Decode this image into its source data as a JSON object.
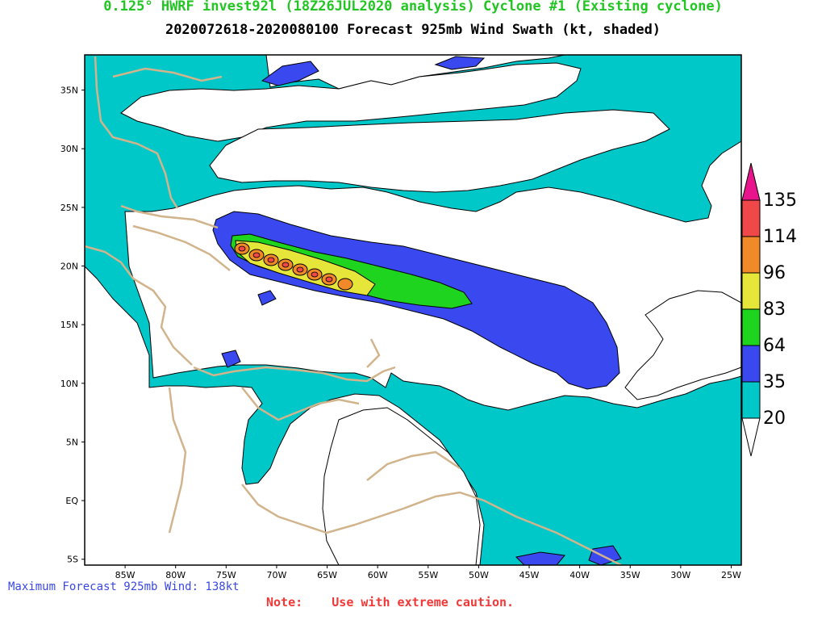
{
  "header": {
    "title": "0.125° HWRF invest92l (18Z26JUL2020 analysis) Cyclone #1 (Existing cyclone)",
    "subtitle": "2020072618-2020080100 Forecast 925mb Wind Swath (kt, shaded)"
  },
  "map": {
    "lat_labels": [
      "35N",
      "30N",
      "25N",
      "20N",
      "15N",
      "10N",
      "5N",
      "EQ",
      "5S"
    ],
    "lon_labels": [
      "85W",
      "80W",
      "75W",
      "70W",
      "65W",
      "60W",
      "55W",
      "50W",
      "45W",
      "40W",
      "35W",
      "30W",
      "25W"
    ],
    "extent": {
      "lon_min": -89,
      "lon_max": -24,
      "lat_min": -5.5,
      "lat_max": 38
    }
  },
  "colorbar": {
    "labels": [
      "135",
      "114",
      "96",
      "83",
      "64",
      "35",
      "20"
    ],
    "colors": {
      "above": "#e8148c",
      "c114_135": "#f04848",
      "c96_114": "#f08a28",
      "c83_96": "#e6e63a",
      "c64_83": "#1ed41e",
      "c35_64": "#3a48f0",
      "c20_35": "#00c8c8",
      "below": "#ffffff"
    }
  },
  "footer": {
    "max_wind": "Maximum Forecast 925mb Wind: 138kt",
    "note": "Note:    Use with extreme caution."
  }
}
